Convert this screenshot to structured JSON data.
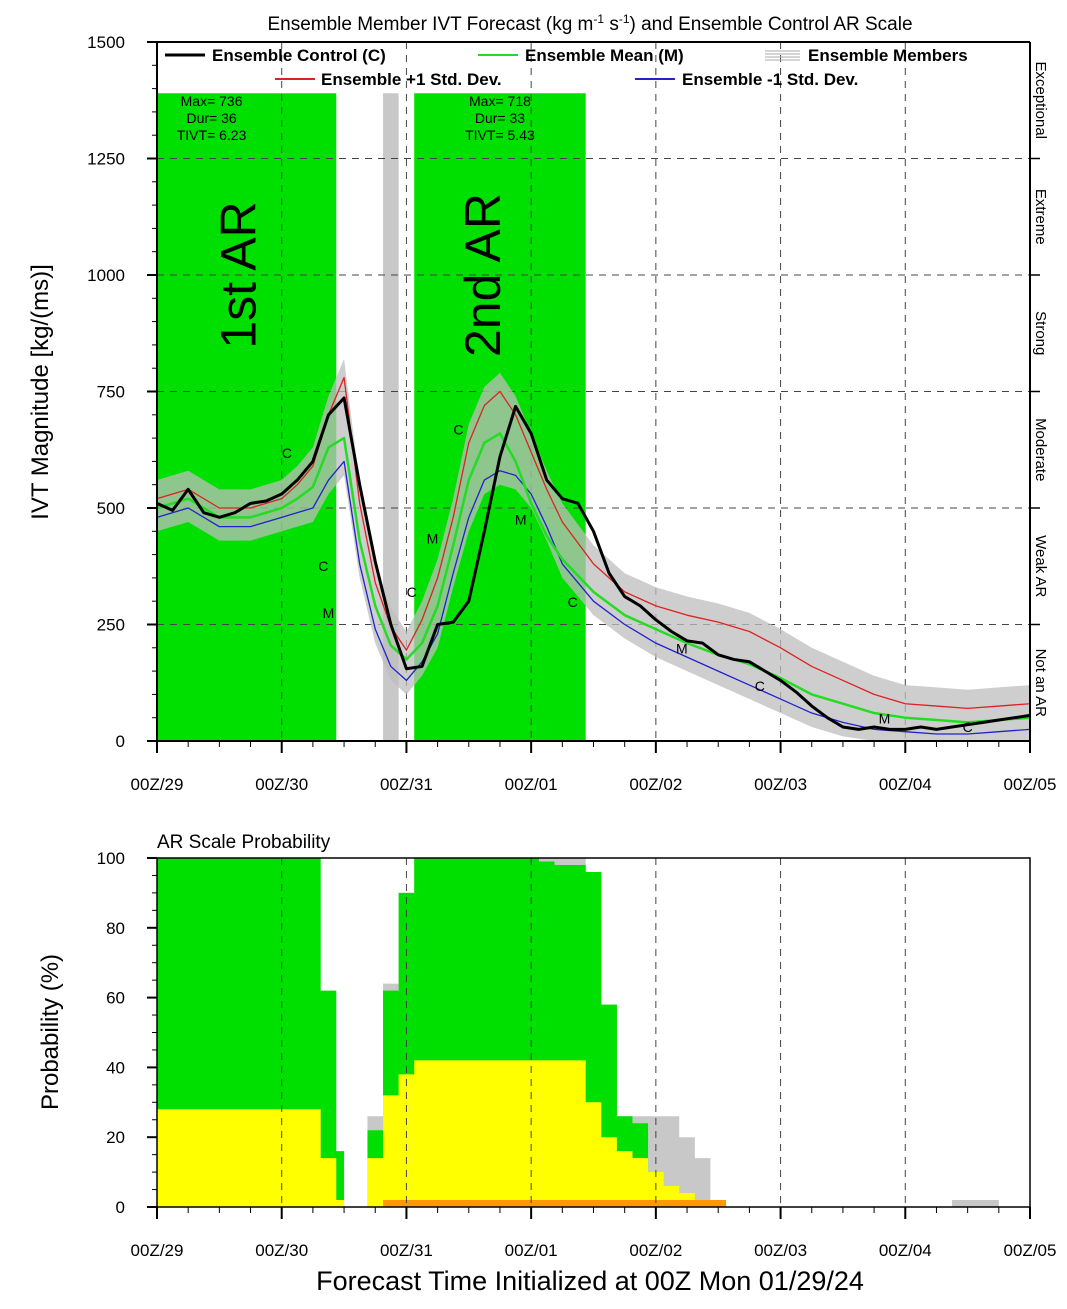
{
  "figure_xlabel": "Forecast Time Initialized at 00Z Mon 01/29/24",
  "chart_data": [
    {
      "type": "line",
      "title": "Ensemble Member IVT Forecast (kg m",
      "title_sup1": "-1",
      "title_mid": " s",
      "title_sup2": "-1",
      "title_end": ") and Ensemble Control AR Scale",
      "ylabel": "IVT Magnitude [kg/(ms)]",
      "xlabel": "",
      "x_unit": "hours",
      "xlim": [
        0,
        168
      ],
      "ylim": [
        0,
        1500
      ],
      "yticks": [
        0,
        250,
        500,
        750,
        1000,
        1250,
        1500
      ],
      "xtick_hours": [
        0,
        24,
        48,
        72,
        96,
        120,
        144,
        168
      ],
      "xtick_labels": [
        "00Z/29",
        "00Z/30",
        "00Z/31",
        "00Z/01",
        "00Z/02",
        "00Z/03",
        "00Z/04",
        "00Z/05"
      ],
      "grid": "dashed verticals at days, y ticks only",
      "legend": {
        "placement": "top",
        "entries": [
          {
            "label": "Ensemble Control (C)",
            "color": "#000000"
          },
          {
            "label": "Ensemble Mean (M)",
            "color": "#22dd22"
          },
          {
            "label": "Ensemble Members",
            "color": "#c0c0c0"
          },
          {
            "label": "Ensemble +1 Std. Dev.",
            "color": "#dd2222"
          },
          {
            "label": "Ensemble -1 Std. Dev.",
            "color": "#2222cc"
          }
        ]
      },
      "ar_scale_labels": [
        "Exceptional",
        "Extreme",
        "Strong",
        "Moderate",
        "Weak AR",
        "Not an AR"
      ],
      "ar_scale_bounds": [
        1500,
        1250,
        1000,
        750,
        500,
        250,
        0
      ],
      "ar_events": [
        {
          "label": "1st AR",
          "start": 0,
          "end": 34.5,
          "max_text": "Max= 736",
          "dur_text": "Dur= 36",
          "tivt_text": "TIVT= 6.23",
          "band_lower": [
            [
              0,
              490
            ],
            [
              6,
              470
            ],
            [
              12,
              430
            ],
            [
              18,
              420
            ],
            [
              24,
              530
            ],
            [
              27,
              530
            ],
            [
              30,
              280
            ],
            [
              34.5,
              240
            ]
          ]
        },
        {
          "label": "2nd AR",
          "start": 49.5,
          "end": 82.5,
          "max_text": "Max= 718",
          "dur_text": "Dur= 33",
          "tivt_text": "TIVT= 5.43",
          "band_lower": [
            [
              49.5,
              250
            ],
            [
              51,
              330
            ],
            [
              54,
              430
            ],
            [
              57,
              480
            ],
            [
              60,
              480
            ],
            [
              66,
              420
            ],
            [
              69,
              320
            ],
            [
              72,
              250
            ],
            [
              78,
              230
            ],
            [
              82.5,
              215
            ]
          ]
        }
      ],
      "gray_bar": {
        "start": 43.5,
        "end": 46.5,
        "top": 1390
      },
      "series": [
        {
          "name": "Ensemble Control (C)",
          "color": "#000000",
          "x": [
            0,
            3,
            6,
            9,
            12,
            15,
            18,
            21,
            24,
            27,
            30,
            33,
            36,
            39,
            42,
            45,
            48,
            51,
            54,
            57,
            60,
            63,
            66,
            69,
            72,
            75,
            78,
            81,
            84,
            87,
            90,
            93,
            96,
            99,
            102,
            105,
            108,
            111,
            114,
            117,
            120,
            123,
            126,
            129,
            132,
            135,
            138,
            141,
            144,
            147,
            150,
            153,
            156,
            159,
            162,
            165,
            168
          ],
          "y": [
            510,
            495,
            540,
            490,
            480,
            490,
            510,
            515,
            530,
            560,
            600,
            700,
            736,
            550,
            385,
            250,
            155,
            160,
            250,
            255,
            300,
            450,
            610,
            718,
            660,
            560,
            520,
            510,
            450,
            360,
            310,
            290,
            260,
            235,
            215,
            210,
            185,
            175,
            170,
            150,
            130,
            105,
            75,
            50,
            30,
            25,
            30,
            25,
            25,
            30,
            25,
            30,
            35,
            40,
            45,
            50,
            55
          ],
          "markers": [
            {
              "x": 25,
              "y": 618
            },
            {
              "x": 32,
              "y": 376
            },
            {
              "x": 49,
              "y": 320
            },
            {
              "x": 58,
              "y": 668
            },
            {
              "x": 80,
              "y": 298
            },
            {
              "x": 116,
              "y": 118
            },
            {
              "x": 156,
              "y": 30
            }
          ]
        },
        {
          "name": "Ensemble Mean (M)",
          "color": "#22dd22",
          "x": [
            0,
            6,
            12,
            18,
            24,
            27,
            30,
            33,
            36,
            39,
            42,
            45,
            48,
            51,
            54,
            57,
            60,
            63,
            66,
            69,
            72,
            75,
            78,
            84,
            90,
            96,
            102,
            108,
            114,
            120,
            126,
            132,
            138,
            144,
            150,
            156,
            162,
            168
          ],
          "y": [
            500,
            520,
            480,
            480,
            500,
            520,
            545,
            630,
            650,
            430,
            290,
            205,
            175,
            210,
            290,
            420,
            560,
            640,
            660,
            600,
            510,
            440,
            390,
            320,
            270,
            240,
            210,
            185,
            165,
            135,
            100,
            80,
            60,
            50,
            45,
            40,
            45,
            50
          ],
          "markers": [
            {
              "x": 33,
              "y": 275
            },
            {
              "x": 53,
              "y": 435
            },
            {
              "x": 70,
              "y": 475
            },
            {
              "x": 101,
              "y": 198
            },
            {
              "x": 140,
              "y": 48
            }
          ]
        },
        {
          "name": "Ensemble +1 Std. Dev.",
          "color": "#dd2222",
          "x": [
            0,
            6,
            12,
            18,
            24,
            27,
            30,
            33,
            36,
            39,
            42,
            45,
            48,
            51,
            54,
            57,
            60,
            63,
            66,
            69,
            72,
            75,
            78,
            84,
            90,
            96,
            102,
            108,
            114,
            120,
            126,
            132,
            138,
            144,
            150,
            156,
            162,
            168
          ],
          "y": [
            520,
            540,
            500,
            500,
            520,
            550,
            590,
            700,
            780,
            510,
            340,
            245,
            195,
            260,
            350,
            480,
            640,
            720,
            750,
            700,
            620,
            540,
            470,
            380,
            320,
            290,
            270,
            255,
            235,
            200,
            160,
            130,
            100,
            80,
            75,
            70,
            75,
            80
          ]
        },
        {
          "name": "Ensemble -1 Std. Dev.",
          "color": "#2222cc",
          "x": [
            0,
            6,
            12,
            18,
            24,
            27,
            30,
            33,
            36,
            39,
            42,
            45,
            48,
            51,
            54,
            57,
            60,
            63,
            66,
            69,
            72,
            75,
            78,
            84,
            90,
            96,
            102,
            108,
            114,
            120,
            126,
            132,
            138,
            144,
            150,
            156,
            162,
            168
          ],
          "y": [
            480,
            500,
            460,
            460,
            480,
            490,
            500,
            560,
            600,
            380,
            240,
            160,
            130,
            170,
            230,
            360,
            480,
            560,
            580,
            570,
            530,
            460,
            380,
            300,
            250,
            210,
            180,
            150,
            120,
            90,
            60,
            40,
            25,
            20,
            15,
            15,
            20,
            25
          ]
        }
      ]
    },
    {
      "type": "area",
      "title": "AR Scale Probability",
      "ylabel": "Probability (%)",
      "xlabel": "",
      "x_unit": "hours",
      "xlim": [
        0,
        168
      ],
      "ylim": [
        0,
        100
      ],
      "yticks": [
        0,
        20,
        40,
        60,
        80,
        100
      ],
      "xtick_hours": [
        0,
        24,
        48,
        72,
        96,
        120,
        144,
        168
      ],
      "xtick_labels": [
        "00Z/29",
        "00Z/30",
        "00Z/31",
        "00Z/01",
        "00Z/02",
        "00Z/03",
        "00Z/04",
        "00Z/05"
      ],
      "step_hours": 3,
      "layers": [
        {
          "name": "gray",
          "color": "#c8c8c8",
          "points": [
            [
              31.5,
              0
            ],
            [
              34.5,
              0
            ],
            [
              36,
              0
            ],
            [
              40.5,
              26
            ],
            [
              43.5,
              64
            ],
            [
              46.5,
              90
            ],
            [
              49.5,
              100
            ],
            [
              82.5,
              96
            ],
            [
              85.5,
              58
            ],
            [
              88.5,
              26
            ],
            [
              91.5,
              26
            ],
            [
              94.5,
              26
            ],
            [
              97.5,
              26
            ],
            [
              100.5,
              20
            ],
            [
              103.5,
              14
            ],
            [
              106.5,
              0
            ],
            [
              150,
              0
            ],
            [
              153,
              2
            ],
            [
              159,
              2
            ],
            [
              162,
              0
            ]
          ]
        },
        {
          "name": "green",
          "color": "#00e000",
          "points": [
            [
              0,
              100
            ],
            [
              31.5,
              62
            ],
            [
              34.5,
              16
            ],
            [
              36,
              0
            ],
            [
              40.5,
              22
            ],
            [
              43.5,
              62
            ],
            [
              46.5,
              90
            ],
            [
              49.5,
              100
            ],
            [
              73.5,
              99
            ],
            [
              76.5,
              98
            ],
            [
              79.5,
              98
            ],
            [
              82.5,
              96
            ],
            [
              85.5,
              58
            ],
            [
              88.5,
              26
            ],
            [
              91.5,
              24
            ],
            [
              94.5,
              4
            ],
            [
              97.5,
              4
            ],
            [
              100.5,
              3
            ],
            [
              103.5,
              1
            ],
            [
              106.5,
              0
            ]
          ]
        },
        {
          "name": "yellow",
          "color": "#ffff00",
          "points": [
            [
              0,
              28
            ],
            [
              31.5,
              14
            ],
            [
              34.5,
              2
            ],
            [
              36,
              0
            ],
            [
              40.5,
              14
            ],
            [
              43.5,
              32
            ],
            [
              46.5,
              38
            ],
            [
              49.5,
              42
            ],
            [
              82.5,
              30
            ],
            [
              85.5,
              20
            ],
            [
              88.5,
              16
            ],
            [
              91.5,
              14
            ],
            [
              94.5,
              10
            ],
            [
              97.5,
              6
            ],
            [
              100.5,
              4
            ],
            [
              103.5,
              0
            ]
          ]
        },
        {
          "name": "orange",
          "color": "#ff9900",
          "points": [
            [
              43.5,
              2
            ],
            [
              106.5,
              2
            ],
            [
              109.5,
              0
            ]
          ]
        }
      ]
    }
  ]
}
